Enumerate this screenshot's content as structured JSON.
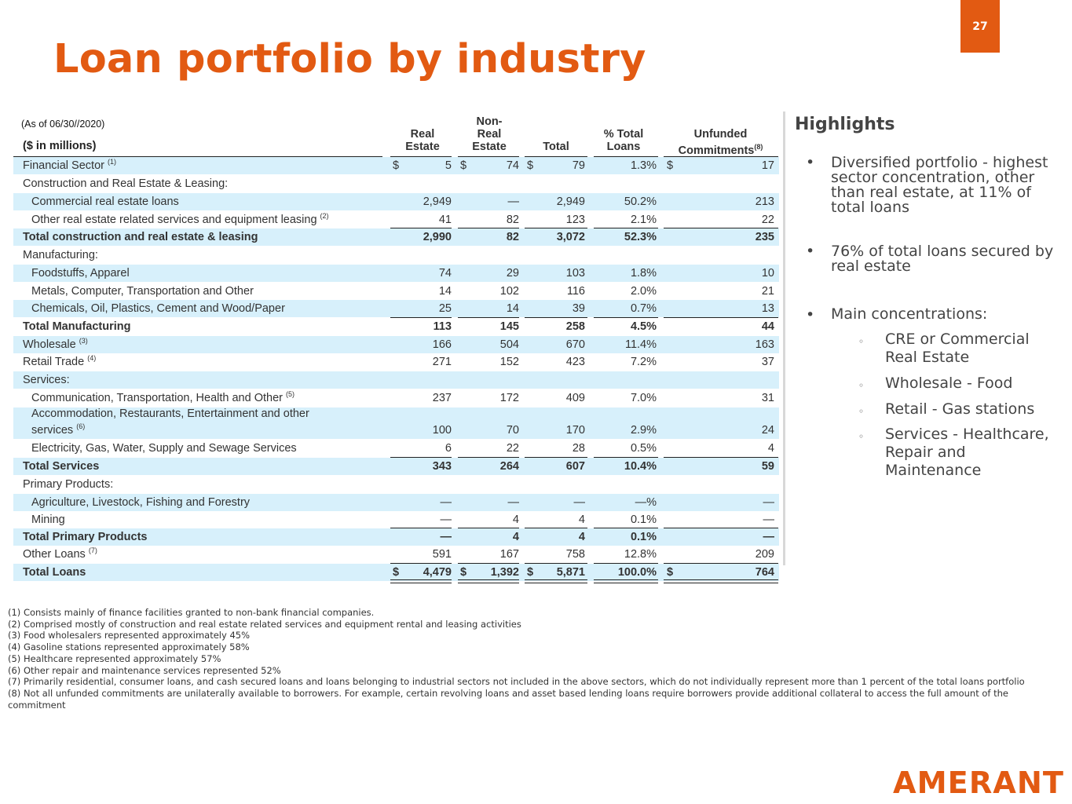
{
  "page_number": "27",
  "title": "Loan portfolio by industry",
  "table": {
    "as_of": "(As of 06/30//2020)",
    "units": "($ in millions)",
    "headers": {
      "real_estate": [
        "Real",
        "Estate"
      ],
      "non_real_estate": [
        "Non-",
        "Real",
        "Estate"
      ],
      "total": "Total",
      "pct_total_loans": [
        "% Total",
        "Loans"
      ],
      "unfunded": [
        "Unfunded",
        "Commitments"
      ],
      "unfunded_note": "(8)"
    },
    "currency_symbol": "$",
    "rows": [
      {
        "label": "Financial Sector",
        "note": "(1)",
        "re": "5",
        "nre": "74",
        "total": "79",
        "pct": "1.3%",
        "unf": "17"
      },
      {
        "label": "Construction and Real Estate & Leasing:"
      },
      {
        "label": "Commercial real estate loans",
        "re": "2,949",
        "nre": "—",
        "total": "2,949",
        "pct": "50.2%",
        "unf": "213"
      },
      {
        "label": "Other real estate related services and equipment leasing",
        "note": "(2)",
        "re": "41",
        "nre": "82",
        "total": "123",
        "pct": "2.1%",
        "unf": "22"
      },
      {
        "label": "Total construction and real estate & leasing",
        "re": "2,990",
        "nre": "82",
        "total": "3,072",
        "pct": "52.3%",
        "unf": "235"
      },
      {
        "label": "Manufacturing:"
      },
      {
        "label": "Foodstuffs, Apparel",
        "re": "74",
        "nre": "29",
        "total": "103",
        "pct": "1.8%",
        "unf": "10"
      },
      {
        "label": "Metals, Computer, Transportation and Other",
        "re": "14",
        "nre": "102",
        "total": "116",
        "pct": "2.0%",
        "unf": "21"
      },
      {
        "label": "Chemicals, Oil, Plastics, Cement and Wood/Paper",
        "re": "25",
        "nre": "14",
        "total": "39",
        "pct": "0.7%",
        "unf": "13"
      },
      {
        "label": "Total Manufacturing",
        "re": "113",
        "nre": "145",
        "total": "258",
        "pct": "4.5%",
        "unf": "44"
      },
      {
        "label": "Wholesale",
        "note": "(3)",
        "re": "166",
        "nre": "504",
        "total": "670",
        "pct": "11.4%",
        "unf": "163"
      },
      {
        "label": "Retail Trade",
        "note": "(4)",
        "re": "271",
        "nre": "152",
        "total": "423",
        "pct": "7.2%",
        "unf": "37"
      },
      {
        "label": "Services:"
      },
      {
        "label": "Communication, Transportation, Health and Other",
        "note": "(5)",
        "re": "237",
        "nre": "172",
        "total": "409",
        "pct": "7.0%",
        "unf": "31"
      },
      {
        "label_line1": "Accommodation, Restaurants, Entertainment and other",
        "label_line2": "services",
        "note": "(6)",
        "re": "100",
        "nre": "70",
        "total": "170",
        "pct": "2.9%",
        "unf": "24"
      },
      {
        "label": "Electricity, Gas, Water, Supply and Sewage Services",
        "re": "6",
        "nre": "22",
        "total": "28",
        "pct": "0.5%",
        "unf": "4"
      },
      {
        "label": "Total Services",
        "re": "343",
        "nre": "264",
        "total": "607",
        "pct": "10.4%",
        "unf": "59"
      },
      {
        "label": "Primary Products:"
      },
      {
        "label": "Agriculture, Livestock, Fishing and Forestry",
        "re": "—",
        "nre": "—",
        "total": "—",
        "pct": "—%",
        "unf": "—"
      },
      {
        "label": "Mining",
        "re": "—",
        "nre": "4",
        "total": "4",
        "pct": "0.1%",
        "unf": "—"
      },
      {
        "label": "Total Primary Products",
        "re": "—",
        "nre": "4",
        "total": "4",
        "pct": "0.1%",
        "unf": "—"
      },
      {
        "label": "Other Loans",
        "note": "(7)",
        "re": "591",
        "nre": "167",
        "total": "758",
        "pct": "12.8%",
        "unf": "209"
      },
      {
        "label": "Total Loans",
        "re": "4,479",
        "nre": "1,392",
        "total": "5,871",
        "pct": "100.0%",
        "unf": "764"
      }
    ]
  },
  "highlights": {
    "title": "Highlights",
    "bullet_symbol": "•",
    "sub_bullet_symbol": "◦",
    "items": [
      "Diversified portfolio - highest sector concentration, other than real estate, at 11% of total loans",
      "76% of total loans secured by real estate",
      "Main concentrations:"
    ],
    "sub_items": [
      "CRE or Commercial Real Estate",
      "Wholesale - Food",
      "Retail - Gas stations",
      "Services - Healthcare, Repair and Maintenance"
    ]
  },
  "footnotes": [
    "(1) Consists mainly of finance facilities granted to non-bank financial companies.",
    "(2) Comprised mostly of construction and real estate related services and equipment rental and leasing activities",
    "(3) Food wholesalers represented approximately 45%",
    "(4) Gasoline stations represented approximately 58%",
    "(5) Healthcare represented approximately 57%",
    "(6) Other repair and maintenance services represented 52%",
    "(7) Primarily residential, consumer loans, and cash secured loans and loans belonging to industrial sectors not included in the above sectors, which do not individually represent more than 1 percent of the total loans portfolio",
    "(8) Not all unfunded commitments are unilaterally available to borrowers. For example, certain revolving loans and asset based lending loans require borrowers provide additional collateral to access the full amount of the commitment"
  ],
  "logo_text": "AMERANT",
  "colors": {
    "brand_orange": "#e25a12",
    "row_shade": "#d7f0fb",
    "text": "#333333"
  }
}
